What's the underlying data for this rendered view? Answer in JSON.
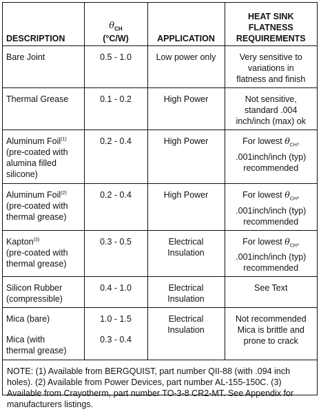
{
  "header": {
    "description": "DESCRIPTION",
    "theta_symbol": "θ",
    "theta_sub": "CH",
    "theta_unit": "(°C/W)",
    "application": "APPLICATION",
    "flatness_line1": "HEAT SINK",
    "flatness_line2": "FLATNESS",
    "flatness_line3": "REQUIREMENTS"
  },
  "rows": [
    {
      "desc": [
        "Bare Joint"
      ],
      "theta": [
        "0.5 - 1.0"
      ],
      "application": [
        "Low power only"
      ],
      "flatness": [
        "Very sensitive to",
        "variations in",
        "flatness and finish"
      ]
    },
    {
      "desc": [
        "Thermal Grease"
      ],
      "theta": [
        "0.1 - 0.2"
      ],
      "application": [
        "High Power"
      ],
      "flatness": [
        "Not sensitive,",
        "standard .004",
        "inch/inch (max) ok"
      ]
    },
    {
      "desc_main": "Aluminum Foil",
      "desc_sup": "(1)",
      "desc": [
        "(pre-coated with",
        "alumina filled",
        "silicone)"
      ],
      "theta": [
        "0.2 - 0.4"
      ],
      "application": [
        "High Power"
      ],
      "flatness_pre": "For lowest ",
      "flatness_sym": "θ",
      "flatness_sub": "CH",
      "flatness_post": ",",
      "flatness": [
        ".001inch/inch (typ)",
        "recommended"
      ]
    },
    {
      "desc_main": "Aluminum Foil",
      "desc_sup": "(2)",
      "desc": [
        "(pre-coated with",
        "thermal grease)"
      ],
      "theta": [
        "0.2 - 0.4"
      ],
      "application": [
        "High Power"
      ],
      "flatness_pre": "For lowest ",
      "flatness_sym": "θ",
      "flatness_sub": "CH",
      "flatness_post": ",",
      "flatness": [
        ".001inch/inch (typ)",
        "recommended"
      ]
    },
    {
      "desc_main": "Kapton",
      "desc_sup": "(3)",
      "desc": [
        "(pre-coated with",
        "thermal grease)"
      ],
      "theta": [
        "0.3 - 0.5"
      ],
      "application": [
        "Electrical",
        "Insulation"
      ],
      "flatness_pre": "For lowest ",
      "flatness_sym": "θ",
      "flatness_sub": "CH",
      "flatness_post": ",",
      "flatness": [
        ".001inch/inch (typ)",
        "recommended"
      ]
    },
    {
      "desc": [
        "Silicon Rubber",
        "(compressible)"
      ],
      "theta": [
        "0.4 - 1.0"
      ],
      "application": [
        "Electrical",
        "Insulation"
      ],
      "flatness": [
        "See Text"
      ]
    },
    {
      "desc_a": "Mica (bare)",
      "desc_b": [
        "Mica (with",
        "thermal grease)"
      ],
      "theta_a": "1.0 - 1.5",
      "theta_b": "0.3 - 0.4",
      "application": [
        "Electrical",
        "Insulation"
      ],
      "flatness": [
        "Not recommended",
        "Mica is brittle and",
        "prone to crack"
      ]
    }
  ],
  "note": "NOTE: (1) Available from BERGQUIST, part number QII-88 (with .094 inch holes). (2) Available from Power Devices, part number AL-155-150C. (3) Available from Crayotherm, part number TO-3-8 CR2-MT. See Appendix for manufacturers listings."
}
